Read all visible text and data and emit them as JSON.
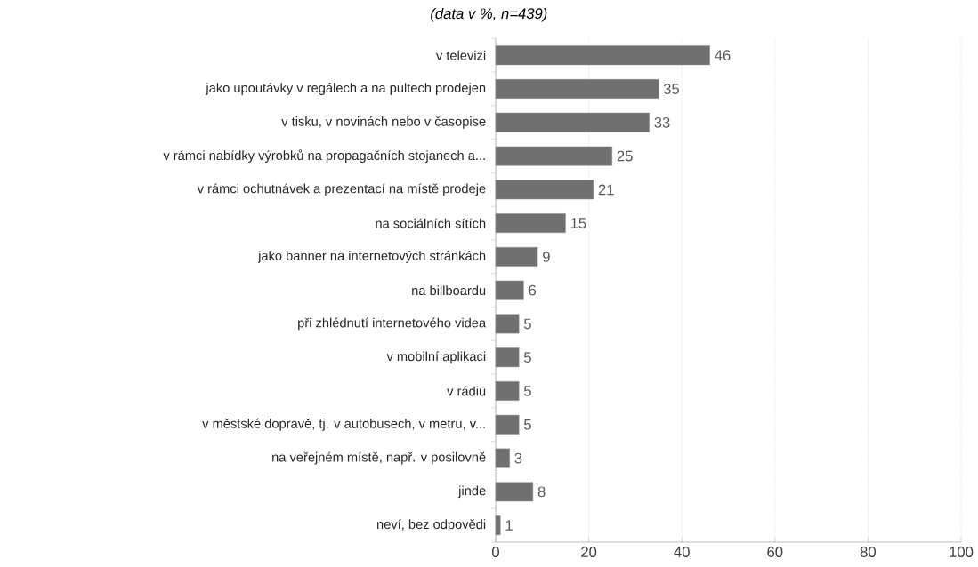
{
  "chart_data": {
    "type": "bar",
    "orientation": "horizontal",
    "subtitle": "(data v %, n=439)",
    "categories": [
      "v televizi",
      "jako upoutávky v regálech a na pultech prodejen",
      "v tisku, v novinách nebo v časopise",
      "v rámci nabídky výrobků na propagačních stojanech a...",
      "v rámci ochutnávek a prezentací na místě prodeje",
      "na sociálních sítích",
      "jako banner na internetových stránkách",
      "na billboardu",
      "při zhlédnutí internetového videa",
      "v mobilní aplikaci",
      "v rádiu",
      "v městské dopravě, tj. v autobusech, v metru, v...",
      "na veřejném místě, např. v posilovně",
      "jinde",
      "neví, bez odpovědi"
    ],
    "values": [
      46,
      35,
      33,
      25,
      21,
      15,
      9,
      6,
      5,
      5,
      5,
      5,
      3,
      8,
      1
    ],
    "color": "#707070",
    "data_labels": true,
    "grid": "x",
    "xlim": [
      0,
      100
    ],
    "xticks": [
      0,
      20,
      40,
      60,
      80,
      100
    ]
  }
}
